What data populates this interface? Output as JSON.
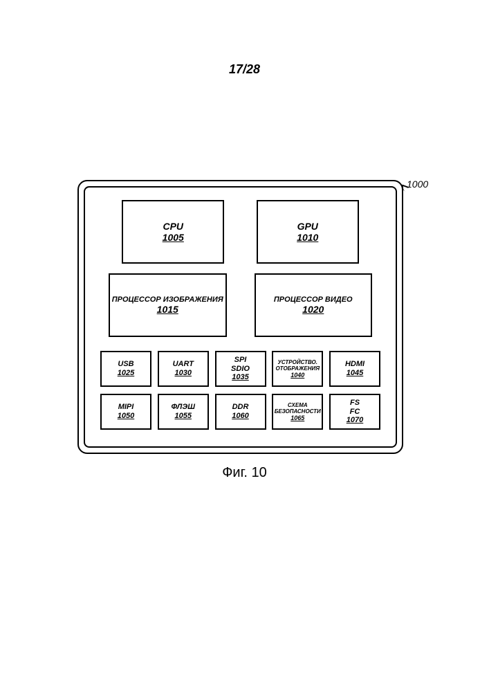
{
  "page": {
    "number": "17/28",
    "caption": "Фиг. 10",
    "ref": "1000"
  },
  "blocks": {
    "cpu": {
      "label": "CPU",
      "num": "1005"
    },
    "gpu": {
      "label": "GPU",
      "num": "1010"
    },
    "imgp": {
      "label": "ПРОЦЕССОР ИЗОБРАЖЕНИЯ",
      "num": "1015"
    },
    "vidp": {
      "label": "ПРОЦЕССОР ВИДЕО",
      "num": "1020"
    },
    "usb": {
      "label": "USB",
      "num": "1025"
    },
    "uart": {
      "label": "UART",
      "num": "1030"
    },
    "spi": {
      "label1": "SPI",
      "label2": "SDIO",
      "num": "1035"
    },
    "disp": {
      "label1": "УСТРОЙСТВО.",
      "label2": "ОТОБРАЖЕНИЯ",
      "num": "1040"
    },
    "hdmi": {
      "label": "HDMI",
      "num": "1045"
    },
    "mipi": {
      "label": "MIPI",
      "num": "1050"
    },
    "flash": {
      "label": "ФЛЭШ",
      "num": "1055"
    },
    "ddr": {
      "label": "DDR",
      "num": "1060"
    },
    "sec": {
      "label1": "СХЕМА",
      "label2": "БЕЗОПАСНОСТИ",
      "num": "1065"
    },
    "fsfc": {
      "label1": "FS",
      "label2": "FC",
      "num": "1070"
    }
  }
}
